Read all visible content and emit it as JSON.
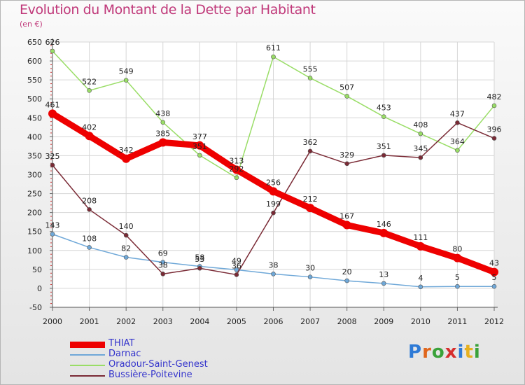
{
  "title": "Evolution du Montant de la Dette par Habitant",
  "unit_label": "(en €)",
  "logo": {
    "letters": [
      "P",
      "r",
      "o",
      "x",
      "i",
      "t",
      "i"
    ],
    "colors": [
      "#2e7ad6",
      "#e0661c",
      "#3aa23a",
      "#d62e2e",
      "#2e7ad6",
      "#e6b020",
      "#3aa23a"
    ]
  },
  "chart_data": {
    "type": "line",
    "title": "Evolution du Montant de la Dette par Habitant",
    "ylabel": "(en €)",
    "xlabel": "",
    "x": [
      "2000",
      "2001",
      "2002",
      "2003",
      "2004",
      "2005",
      "2006",
      "2007",
      "2008",
      "2009",
      "2010",
      "2011",
      "2012"
    ],
    "ylim": [
      -50,
      650
    ],
    "yticks": [
      -50,
      0,
      50,
      100,
      150,
      200,
      250,
      300,
      350,
      400,
      450,
      500,
      550,
      600,
      650
    ],
    "grid": true,
    "legend_position": "bottom-left",
    "series": [
      {
        "name": "THIAT",
        "color": "#ee0000",
        "width": 9,
        "marker": 6,
        "values": [
          461,
          402,
          342,
          385,
          377,
          313,
          256,
          212,
          167,
          146,
          111,
          80,
          43
        ],
        "labels": [
          "461",
          "402",
          "342",
          "385",
          "377",
          "313",
          "256",
          "212",
          "167",
          "146",
          "111",
          "80",
          "43"
        ]
      },
      {
        "name": "Darnac",
        "color": "#6fa8d8",
        "width": 1.5,
        "marker": 3,
        "values": [
          143,
          108,
          82,
          69,
          58,
          49,
          38,
          30,
          20,
          13,
          4,
          5,
          5
        ],
        "labels": [
          "143",
          "108",
          "82",
          "69",
          "58",
          "49",
          "38",
          "30",
          "20",
          "13",
          "4",
          "5",
          "5"
        ]
      },
      {
        "name": "Oradour-Saint-Genest",
        "color": "#99dd66",
        "width": 1.5,
        "marker": 3,
        "values": [
          626,
          522,
          549,
          438,
          351,
          292,
          611,
          555,
          507,
          453,
          408,
          364,
          482
        ],
        "labels": [
          "626",
          "522",
          "549",
          "438",
          "351",
          "292",
          "611",
          "555",
          "507",
          "453",
          "408",
          "364",
          "482"
        ]
      },
      {
        "name": "Bussière-Poitevine",
        "color": "#7a2a35",
        "width": 1.5,
        "marker": 3,
        "values": [
          325,
          208,
          140,
          38,
          53,
          36,
          199,
          362,
          329,
          351,
          345,
          437,
          396
        ],
        "labels": [
          "325",
          "208",
          "140",
          "38",
          "53",
          "36",
          "199",
          "362",
          "329",
          "351",
          "345",
          "437",
          "396"
        ]
      }
    ]
  }
}
